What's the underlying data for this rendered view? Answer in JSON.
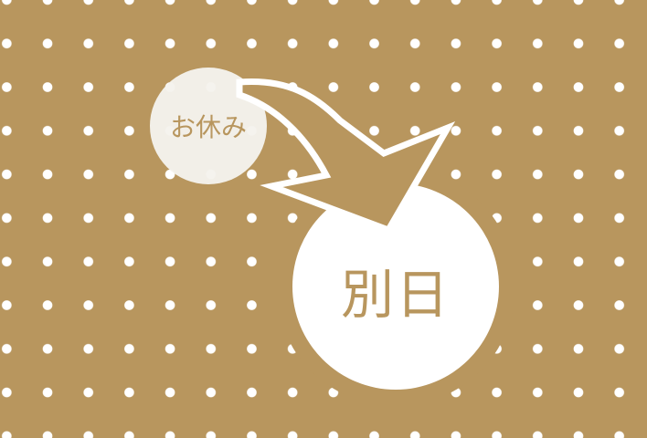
{
  "scene": {
    "from_label": "お休み",
    "to_label": "別日",
    "colors": {
      "background": "#b8965e",
      "dots": "#ffffff",
      "arrow_fill": "#b8965e",
      "arrow_outline": "#ffffff",
      "circle_fill": "#ffffff",
      "text": "#b8965e"
    },
    "icons": {
      "arrow": "curved-arrow-icon"
    }
  }
}
